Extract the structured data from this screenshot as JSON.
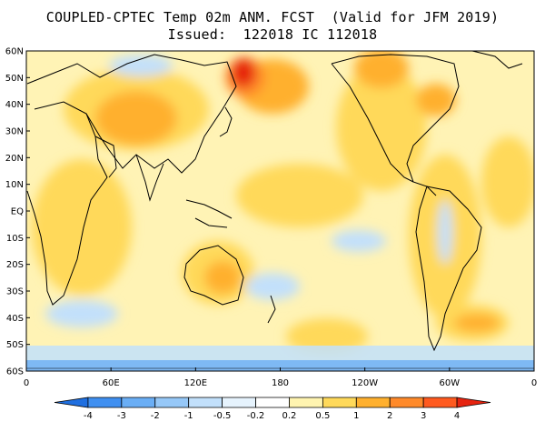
{
  "header": {
    "title_line1": "COUPLED-CPTEC Temp 02m ANM. FCST  (Valid for JFM 2019)",
    "title_line2": "Issued:  122018 IC 112018"
  },
  "map": {
    "lat_labels": [
      "60N",
      "50N",
      "40N",
      "30N",
      "20N",
      "10N",
      "EQ",
      "10S",
      "20S",
      "30S",
      "40S",
      "50S",
      "60S"
    ],
    "lon_labels": [
      "0",
      "60E",
      "120E",
      "180",
      "120W",
      "60W",
      "0"
    ]
  },
  "colorbar": {
    "labels": [
      "-4",
      "-3",
      "-2",
      "-1",
      "-0.5",
      "-0.2",
      "0.2",
      "0.5",
      "1",
      "2",
      "3",
      "4"
    ],
    "colors": [
      "#1f6fe0",
      "#3f8ff0",
      "#6aaef5",
      "#96c8f8",
      "#c2e0fb",
      "#e6f3fd",
      "#ffffff",
      "#fff4b0",
      "#ffd95a",
      "#ffb02e",
      "#ff8a2a",
      "#ff5a1f",
      "#e62410"
    ]
  },
  "palette": {
    "ocean": "#fff3b5",
    "warm": "#ffd95a",
    "hot": "#ffb02e",
    "hotter": "#ff8a2a",
    "extreme": "#e62410",
    "cool": "#c2e0fb",
    "cold": "#6aaef5"
  }
}
